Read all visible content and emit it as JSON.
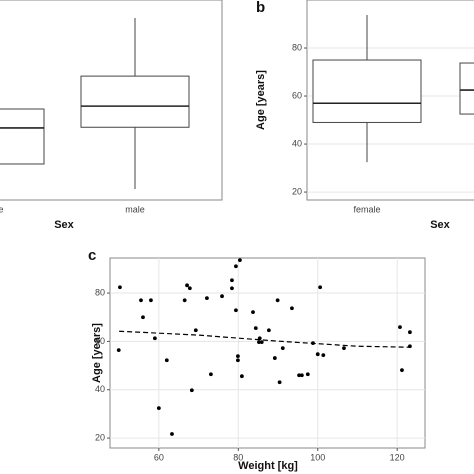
{
  "chart_data": [
    {
      "type": "box",
      "categories": [
        "female",
        "male"
      ],
      "x_label": "Sex",
      "ylim": [
        16.7,
        100
      ],
      "whisker_low": [
        null,
        21.3
      ],
      "q1": [
        31.7,
        47
      ],
      "median": [
        46.7,
        55.8
      ],
      "q3": [
        54.6,
        68.3
      ],
      "whisker_high": [
        null,
        92.5
      ],
      "grid": true
    },
    {
      "type": "box",
      "panel_label": "b",
      "categories": [
        "female",
        null
      ],
      "x_label": "Sex",
      "y_label": "Age [years]",
      "ylim": [
        16.7,
        100
      ],
      "yticks": [
        20,
        40,
        60,
        80
      ],
      "whisker_low": [
        32.5,
        null
      ],
      "q1": [
        49,
        52.5
      ],
      "median": [
        57,
        62.5
      ],
      "q3": [
        75,
        73.75
      ],
      "whisker_high": [
        93.75,
        null
      ],
      "grid": true
    },
    {
      "type": "scatter",
      "panel_label": "c",
      "x_label": "Weight [kg]",
      "y_label": "Age [years]",
      "xlim": [
        47.7,
        127
      ],
      "ylim": [
        15.9,
        94.5
      ],
      "xticks": [
        60,
        80,
        100,
        120
      ],
      "yticks": [
        20,
        40,
        60,
        80
      ],
      "grid": true,
      "series": [
        {
          "color": "#000000",
          "x": [
            50.2,
            49.9,
            55.5,
            56.0,
            58.0,
            59.0,
            60.0,
            62.0,
            63.3,
            66.5,
            67.1,
            67.8,
            68.3,
            69.3,
            72.1,
            73.1,
            75.9,
            78.4,
            78.4,
            79.4,
            80.4,
            79.4,
            79.9,
            79.9,
            80.9,
            83.7,
            84.4,
            85.2,
            85.4,
            85.9,
            87.7,
            89.2,
            89.9,
            90.4,
            91.2,
            93.5,
            95.3,
            96.0,
            97.5,
            98.8,
            100.0,
            100.6,
            101.4,
            106.6,
            120.7,
            121.2,
            123.2,
            123.2
          ],
          "y": [
            82.4,
            56.4,
            77.0,
            70.0,
            77.0,
            61.3,
            32.4,
            52.2,
            21.7,
            77.0,
            83.2,
            82.0,
            39.8,
            64.6,
            77.9,
            46.4,
            78.7,
            85.3,
            82.0,
            91.1,
            93.6,
            72.9,
            53.9,
            52.2,
            45.6,
            72.1,
            65.5,
            59.7,
            61.3,
            59.7,
            64.6,
            53.1,
            77.0,
            43.1,
            57.2,
            73.7,
            46.0,
            46.0,
            46.4,
            59.3,
            54.7,
            82.4,
            54.3,
            57.2,
            65.9,
            48.1,
            63.8,
            58.0
          ]
        }
      ],
      "trend": {
        "color": "#000000",
        "dashed": true,
        "x": [
          50,
          70,
          90,
          110,
          123
        ],
        "y": [
          64.2,
          62.6,
          60.1,
          58.0,
          57.6
        ]
      }
    }
  ]
}
